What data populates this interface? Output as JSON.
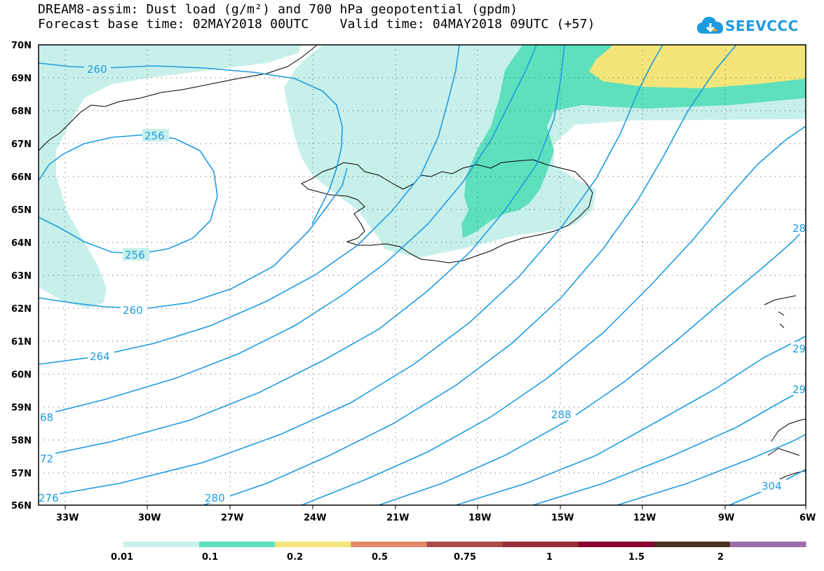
{
  "title_line_1": "DREAM8-assim: Dust load (g/m²) and 700 hPa geopotential (gpdm)",
  "title_line_2": "Forecast base time: 02MAY2018 00UTC    Valid time: 04MAY2018 09UTC (+57)",
  "logo_text": "SEEVCCC",
  "logo_icon": "cloud-download-icon",
  "map": {
    "lon_labels": [
      "33W",
      "30W",
      "27W",
      "24W",
      "21W",
      "18W",
      "15W",
      "12W",
      "9W",
      "6W"
    ],
    "lat_labels": [
      "70N",
      "69N",
      "68N",
      "67N",
      "66N",
      "65N",
      "64N",
      "63N",
      "62N",
      "61N",
      "60N",
      "59N",
      "58N",
      "57N",
      "56N"
    ],
    "contour_labels": [
      {
        "id": "c260a",
        "text": "260"
      },
      {
        "id": "c256a",
        "text": "256"
      },
      {
        "id": "c256b",
        "text": "256"
      },
      {
        "id": "c260b",
        "text": "260"
      },
      {
        "id": "c264",
        "text": "264"
      },
      {
        "id": "c268",
        "text": "68"
      },
      {
        "id": "c272",
        "text": "72"
      },
      {
        "id": "c276",
        "text": "276"
      },
      {
        "id": "c280",
        "text": "280"
      },
      {
        "id": "c288",
        "text": "288"
      },
      {
        "id": "c28x",
        "text": "28"
      },
      {
        "id": "c29a",
        "text": "29"
      },
      {
        "id": "c29b",
        "text": "29"
      },
      {
        "id": "c304",
        "text": "304"
      }
    ],
    "contour_color": "#1e9be0"
  },
  "colorbar": {
    "labels": [
      "0.01",
      "0.1",
      "0.2",
      "0.5",
      "0.75",
      "1",
      "1.5",
      "2"
    ],
    "colors": [
      "#c8f0ea",
      "#5ee0bd",
      "#f4e57a",
      "#e08a6a",
      "#a84e48",
      "#9a2e3a",
      "#8a0030",
      "#4a3020",
      "#9a70a8"
    ]
  }
}
